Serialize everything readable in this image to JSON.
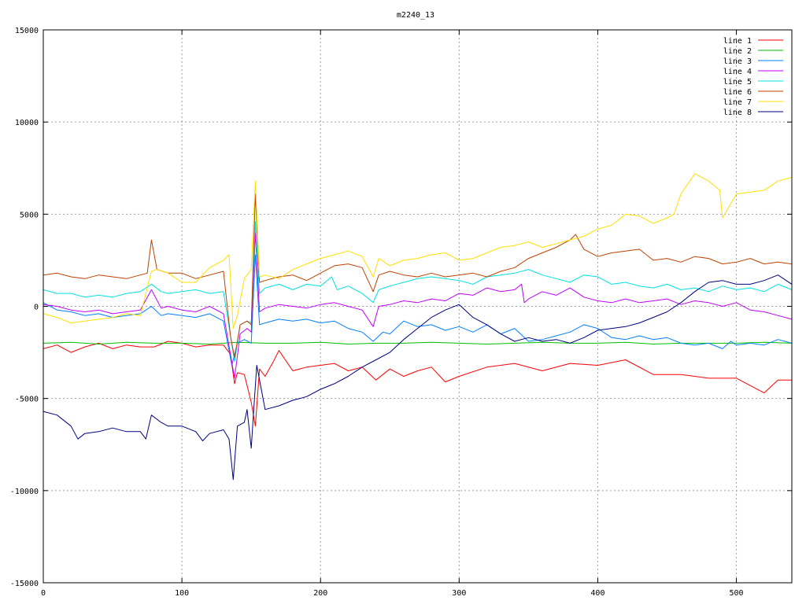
{
  "chart_data": {
    "type": "line",
    "title": "m2240_13",
    "xlabel": "",
    "ylabel": "",
    "xlim": [
      0,
      540
    ],
    "ylim": [
      -15000,
      15000
    ],
    "xticks": [
      0,
      100,
      200,
      300,
      400,
      500
    ],
    "yticks": [
      -15000,
      -10000,
      -5000,
      0,
      5000,
      10000,
      15000
    ],
    "xtick_labels": [
      "0",
      "100",
      "200",
      "300",
      "400",
      "500"
    ],
    "ytick_labels": [
      "-15000",
      "-10000",
      "-5000",
      "0",
      "5000",
      "10000",
      "15000"
    ],
    "grid": true,
    "legend_position": "top-right",
    "series": [
      {
        "name": "line 1",
        "color": "#ff0000",
        "x": [
          0,
          10,
          20,
          30,
          40,
          50,
          60,
          70,
          80,
          90,
          100,
          110,
          120,
          130,
          135,
          138,
          140,
          145,
          150,
          153,
          156,
          160,
          166,
          170,
          180,
          190,
          200,
          210,
          220,
          230,
          240,
          250,
          260,
          270,
          280,
          290,
          300,
          320,
          340,
          360,
          380,
          400,
          420,
          440,
          460,
          480,
          500,
          520,
          530,
          540
        ],
        "y": [
          -2300,
          -2100,
          -2500,
          -2200,
          -2000,
          -2300,
          -2100,
          -2200,
          -2200,
          -1900,
          -2000,
          -2200,
          -2100,
          -2100,
          -2600,
          -4200,
          -3600,
          -3700,
          -5200,
          -6500,
          -3400,
          -3800,
          -3000,
          -2400,
          -3500,
          -3300,
          -3200,
          -3100,
          -3500,
          -3300,
          -4000,
          -3400,
          -3800,
          -3500,
          -3300,
          -4100,
          -3800,
          -3300,
          -3100,
          -3500,
          -3100,
          -3200,
          -2900,
          -3700,
          -3700,
          -3900,
          -3900,
          -4700,
          -4000,
          -4000
        ]
      },
      {
        "name": "line 2",
        "color": "#00c000",
        "x": [
          0,
          20,
          40,
          60,
          80,
          100,
          120,
          140,
          160,
          180,
          200,
          220,
          240,
          260,
          280,
          300,
          320,
          340,
          360,
          380,
          400,
          420,
          440,
          460,
          480,
          500,
          520,
          540
        ],
        "y": [
          -2000,
          -1950,
          -2050,
          -1950,
          -2000,
          -2000,
          -2050,
          -1950,
          -2000,
          -2000,
          -1950,
          -2050,
          -2000,
          -2000,
          -1950,
          -2000,
          -2050,
          -2000,
          -1950,
          -2000,
          -2000,
          -1950,
          -2050,
          -2000,
          -2000,
          -2000,
          -1950,
          -2000
        ]
      },
      {
        "name": "line 3",
        "color": "#0080ff",
        "x": [
          0,
          10,
          20,
          30,
          40,
          50,
          60,
          70,
          78,
          85,
          90,
          100,
          110,
          120,
          130,
          136,
          140,
          145,
          150,
          153,
          156,
          160,
          170,
          180,
          190,
          200,
          210,
          220,
          230,
          238,
          245,
          250,
          260,
          270,
          280,
          290,
          300,
          310,
          320,
          330,
          340,
          350,
          360,
          370,
          380,
          390,
          400,
          410,
          420,
          430,
          440,
          450,
          460,
          470,
          480,
          490,
          496,
          500,
          510,
          520,
          530,
          540
        ],
        "y": [
          200,
          -200,
          -300,
          -500,
          -400,
          -600,
          -500,
          -400,
          0,
          -500,
          -400,
          -500,
          -600,
          -400,
          -800,
          -3200,
          -2000,
          -1800,
          -2000,
          2800,
          -1000,
          -900,
          -700,
          -800,
          -700,
          -900,
          -800,
          -1200,
          -1400,
          -1900,
          -1400,
          -1500,
          -800,
          -1100,
          -1000,
          -1300,
          -1100,
          -1400,
          -1000,
          -1500,
          -1200,
          -1900,
          -1800,
          -1600,
          -1400,
          -1000,
          -1200,
          -1700,
          -1800,
          -1600,
          -1800,
          -1700,
          -2000,
          -2100,
          -2000,
          -2300,
          -1900,
          -2100,
          -2000,
          -2100,
          -1800,
          -2000
        ]
      },
      {
        "name": "line 4",
        "color": "#c000ff",
        "x": [
          0,
          10,
          20,
          30,
          40,
          50,
          60,
          70,
          78,
          85,
          90,
          100,
          110,
          120,
          130,
          135,
          138,
          142,
          147,
          150,
          153,
          156,
          160,
          170,
          180,
          190,
          200,
          210,
          220,
          230,
          238,
          242,
          250,
          260,
          270,
          280,
          290,
          300,
          310,
          320,
          330,
          340,
          345,
          347,
          350,
          360,
          370,
          380,
          390,
          400,
          410,
          420,
          430,
          440,
          450,
          460,
          470,
          480,
          490,
          500,
          510,
          520,
          530,
          540
        ],
        "y": [
          100,
          0,
          -200,
          -300,
          -200,
          -400,
          -300,
          -200,
          900,
          -100,
          0,
          -200,
          -300,
          0,
          -400,
          -2600,
          -3900,
          -1500,
          -1200,
          -1400,
          4000,
          -300,
          -100,
          100,
          0,
          -100,
          100,
          200,
          0,
          -200,
          -1100,
          0,
          100,
          300,
          200,
          400,
          300,
          700,
          600,
          1000,
          800,
          900,
          1200,
          200,
          400,
          800,
          600,
          1000,
          500,
          300,
          200,
          400,
          200,
          300,
          400,
          100,
          300,
          200,
          0,
          200,
          -200,
          -300,
          -500,
          -700
        ]
      },
      {
        "name": "line 5",
        "color": "#00e0e0",
        "x": [
          0,
          10,
          20,
          30,
          40,
          50,
          60,
          70,
          78,
          85,
          90,
          100,
          110,
          120,
          130,
          135,
          138,
          142,
          147,
          150,
          153,
          156,
          160,
          170,
          180,
          190,
          200,
          208,
          212,
          220,
          230,
          238,
          242,
          250,
          260,
          270,
          280,
          290,
          300,
          310,
          320,
          330,
          340,
          350,
          360,
          370,
          380,
          390,
          400,
          410,
          420,
          430,
          440,
          450,
          460,
          470,
          480,
          490,
          500,
          510,
          520,
          530,
          540
        ],
        "y": [
          900,
          700,
          700,
          500,
          600,
          500,
          700,
          800,
          1200,
          800,
          700,
          800,
          900,
          700,
          800,
          -1600,
          -3000,
          -1000,
          -800,
          -900,
          4600,
          700,
          1000,
          1200,
          900,
          1200,
          1100,
          1600,
          900,
          1100,
          700,
          200,
          900,
          1100,
          1300,
          1500,
          1600,
          1500,
          1400,
          1200,
          1600,
          1700,
          1800,
          2000,
          1700,
          1500,
          1300,
          1700,
          1600,
          1200,
          1300,
          1100,
          1000,
          1200,
          900,
          1000,
          800,
          1100,
          900,
          1000,
          800,
          1200,
          900
        ]
      },
      {
        "name": "line 6",
        "color": "#c04000",
        "x": [
          0,
          10,
          20,
          30,
          40,
          50,
          60,
          70,
          75,
          78,
          82,
          90,
          100,
          110,
          120,
          130,
          135,
          138,
          142,
          147,
          150,
          153,
          156,
          160,
          170,
          180,
          190,
          200,
          210,
          220,
          230,
          238,
          242,
          250,
          260,
          270,
          280,
          290,
          300,
          310,
          320,
          330,
          340,
          350,
          360,
          370,
          380,
          384,
          390,
          400,
          410,
          420,
          430,
          440,
          450,
          460,
          470,
          480,
          490,
          500,
          510,
          520,
          530,
          540
        ],
        "y": [
          1700,
          1800,
          1600,
          1500,
          1700,
          1600,
          1500,
          1700,
          1800,
          3600,
          2000,
          1800,
          1800,
          1500,
          1700,
          1900,
          -1600,
          -2800,
          -1000,
          -800,
          -1000,
          6100,
          1300,
          1400,
          1600,
          1700,
          1400,
          1800,
          2200,
          2300,
          2100,
          800,
          1700,
          1900,
          1700,
          1600,
          1800,
          1600,
          1700,
          1800,
          1600,
          1900,
          2100,
          2600,
          2900,
          3200,
          3600,
          3900,
          3100,
          2700,
          2900,
          3000,
          3100,
          2500,
          2600,
          2400,
          2700,
          2600,
          2300,
          2400,
          2600,
          2300,
          2400,
          2300
        ]
      },
      {
        "name": "line 7",
        "color": "#ffe000",
        "x": [
          0,
          10,
          20,
          30,
          40,
          50,
          60,
          70,
          78,
          82,
          90,
          100,
          110,
          120,
          130,
          134,
          137,
          140,
          145,
          150,
          153,
          156,
          160,
          170,
          180,
          190,
          200,
          210,
          220,
          230,
          238,
          242,
          250,
          260,
          270,
          280,
          290,
          300,
          310,
          320,
          330,
          340,
          350,
          360,
          370,
          380,
          390,
          400,
          410,
          420,
          430,
          440,
          450,
          455,
          460,
          470,
          480,
          488,
          490,
          500,
          510,
          520,
          530,
          540
        ],
        "y": [
          -400,
          -600,
          -900,
          -800,
          -700,
          -600,
          -400,
          -500,
          1900,
          2000,
          1800,
          1300,
          1300,
          2100,
          2500,
          2800,
          -1200,
          -500,
          1500,
          2000,
          6800,
          1600,
          1700,
          1500,
          2000,
          2300,
          2600,
          2800,
          3000,
          2700,
          1600,
          2600,
          2200,
          2500,
          2600,
          2800,
          2900,
          2500,
          2600,
          2900,
          3200,
          3300,
          3500,
          3200,
          3400,
          3600,
          3800,
          4200,
          4400,
          5000,
          4900,
          4500,
          4800,
          5000,
          6100,
          7200,
          6800,
          6300,
          4800,
          6100,
          6200,
          6300,
          6800,
          7000
        ]
      },
      {
        "name": "line 8",
        "color": "#000080",
        "x": [
          0,
          10,
          20,
          25,
          30,
          40,
          50,
          60,
          70,
          74,
          78,
          85,
          90,
          100,
          110,
          115,
          120,
          130,
          134,
          137,
          140,
          145,
          147,
          150,
          152,
          154,
          158,
          160,
          170,
          180,
          190,
          200,
          210,
          220,
          230,
          240,
          250,
          260,
          270,
          280,
          290,
          300,
          310,
          320,
          330,
          340,
          350,
          360,
          370,
          380,
          390,
          400,
          410,
          420,
          430,
          440,
          450,
          460,
          470,
          480,
          490,
          500,
          510,
          520,
          530,
          540
        ],
        "y": [
          -5700,
          -5900,
          -6500,
          -7200,
          -6900,
          -6800,
          -6600,
          -6800,
          -6800,
          -7200,
          -5900,
          -6300,
          -6500,
          -6500,
          -6800,
          -7300,
          -6900,
          -6700,
          -7200,
          -9400,
          -6500,
          -6300,
          -5600,
          -7700,
          -5400,
          -3200,
          -4800,
          -5600,
          -5400,
          -5100,
          -4900,
          -4500,
          -4200,
          -3800,
          -3300,
          -2900,
          -2500,
          -1800,
          -1200,
          -600,
          -200,
          100,
          -600,
          -1000,
          -1500,
          -1900,
          -1700,
          -1900,
          -1800,
          -2000,
          -1700,
          -1300,
          -1200,
          -1100,
          -900,
          -600,
          -300,
          200,
          800,
          1300,
          1400,
          1200,
          1200,
          1400,
          1700,
          1200
        ]
      }
    ]
  }
}
